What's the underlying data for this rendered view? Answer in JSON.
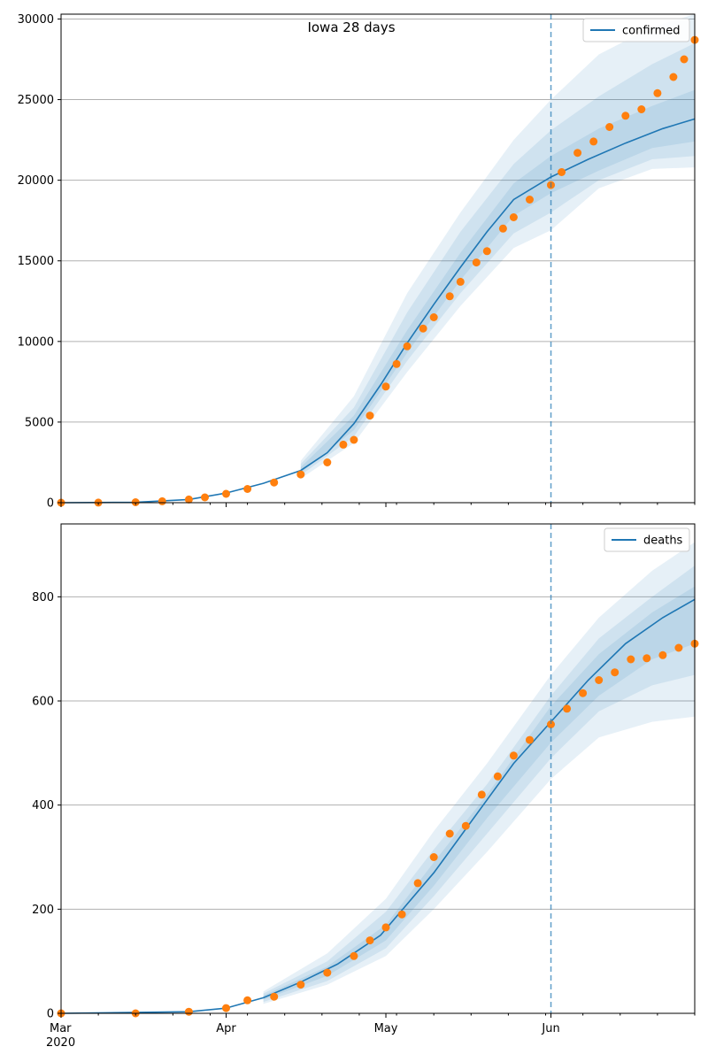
{
  "figure": {
    "title": "Iowa 28 days"
  },
  "colors": {
    "fit_line": "#1f77b4",
    "band": "#1f77b4",
    "observed": "#ff7f0e",
    "grid": "#b0b0b0",
    "cutoff": "#1f77b4"
  },
  "chart_data": [
    {
      "type": "line",
      "name": "confirmed-panel",
      "title": "Iowa 28 days",
      "legend": {
        "entries": [
          "confirmed"
        ],
        "placement": "top-right"
      },
      "xlabel": "",
      "ylabel": "",
      "x_range": [
        "2020-03-01",
        "2020-06-28"
      ],
      "x_tick_labels": [
        "Mar",
        "Apr",
        "May",
        "Jun"
      ],
      "x_tick_dates": [
        "2020-03-01",
        "2020-04-01",
        "2020-05-01",
        "2020-06-01"
      ],
      "x_year_label": "2020",
      "x_tick_labels_visible": false,
      "ylim": [
        0,
        30300
      ],
      "y_ticks": [
        0,
        5000,
        10000,
        15000,
        20000,
        25000,
        30000
      ],
      "grid": "horizontal",
      "cutoff_date": "2020-06-01",
      "fit_series": {
        "name": "confirmed",
        "x": [
          "2020-03-01",
          "2020-03-15",
          "2020-03-25",
          "2020-04-01",
          "2020-04-08",
          "2020-04-15",
          "2020-04-20",
          "2020-04-25",
          "2020-04-30",
          "2020-05-05",
          "2020-05-10",
          "2020-05-15",
          "2020-05-20",
          "2020-05-25",
          "2020-06-01",
          "2020-06-08",
          "2020-06-15",
          "2020-06-22",
          "2020-06-28"
        ],
        "y": [
          0,
          20,
          200,
          600,
          1200,
          2000,
          3100,
          4900,
          7300,
          9900,
          12300,
          14600,
          16800,
          18800,
          20200,
          21300,
          22300,
          23200,
          23800
        ]
      },
      "bands": [
        {
          "x": [
            "2020-04-15",
            "2020-04-25",
            "2020-05-05",
            "2020-05-15",
            "2020-05-25",
            "2020-06-01",
            "2020-06-10",
            "2020-06-20",
            "2020-06-28"
          ],
          "low": [
            1500,
            3700,
            8100,
            12200,
            15800,
            16900,
            19500,
            20700,
            20800
          ],
          "high": [
            2600,
            6600,
            13000,
            18000,
            22500,
            25000,
            27800,
            29500,
            30300
          ]
        },
        {
          "x": [
            "2020-04-15",
            "2020-04-25",
            "2020-05-05",
            "2020-05-15",
            "2020-05-25",
            "2020-06-01",
            "2020-06-10",
            "2020-06-20",
            "2020-06-28"
          ],
          "low": [
            1700,
            4100,
            8800,
            13000,
            16700,
            18000,
            20000,
            21300,
            21500
          ],
          "high": [
            2400,
            5900,
            11800,
            16800,
            21000,
            23100,
            25200,
            27200,
            28500
          ]
        },
        {
          "x": [
            "2020-04-15",
            "2020-04-25",
            "2020-05-05",
            "2020-05-15",
            "2020-05-25",
            "2020-06-01",
            "2020-06-10",
            "2020-06-20",
            "2020-06-28"
          ],
          "low": [
            1850,
            4500,
            9300,
            13800,
            17800,
            19200,
            20600,
            22000,
            22400
          ],
          "high": [
            2200,
            5400,
            10700,
            15500,
            19800,
            21500,
            23200,
            24600,
            25600
          ]
        }
      ],
      "observed_series": {
        "name": "observed",
        "x": [
          "2020-03-01",
          "2020-03-08",
          "2020-03-15",
          "2020-03-20",
          "2020-03-25",
          "2020-03-28",
          "2020-04-01",
          "2020-04-05",
          "2020-04-10",
          "2020-04-15",
          "2020-04-20",
          "2020-04-23",
          "2020-04-25",
          "2020-04-28",
          "2020-05-01",
          "2020-05-03",
          "2020-05-05",
          "2020-05-08",
          "2020-05-10",
          "2020-05-13",
          "2020-05-15",
          "2020-05-18",
          "2020-05-20",
          "2020-05-23",
          "2020-05-25",
          "2020-05-28",
          "2020-06-01",
          "2020-06-03",
          "2020-06-06",
          "2020-06-09",
          "2020-06-12",
          "2020-06-15",
          "2020-06-18",
          "2020-06-21",
          "2020-06-24",
          "2020-06-26",
          "2020-06-28"
        ],
        "y": [
          0,
          5,
          25,
          90,
          200,
          330,
          550,
          850,
          1250,
          1750,
          2500,
          3600,
          3900,
          5400,
          7200,
          8600,
          9700,
          10800,
          11500,
          12800,
          13700,
          14900,
          15600,
          17000,
          17700,
          18800,
          19700,
          20500,
          21700,
          22400,
          23300,
          24000,
          24400,
          25400,
          26400,
          27500,
          28700
        ]
      }
    },
    {
      "type": "line",
      "name": "deaths-panel",
      "title": "",
      "legend": {
        "entries": [
          "deaths"
        ],
        "placement": "top-right"
      },
      "xlabel": "",
      "ylabel": "",
      "x_range": [
        "2020-03-01",
        "2020-06-28"
      ],
      "x_tick_labels": [
        "Mar",
        "Apr",
        "May",
        "Jun"
      ],
      "x_tick_dates": [
        "2020-03-01",
        "2020-04-01",
        "2020-05-01",
        "2020-06-01"
      ],
      "x_year_label": "2020",
      "x_tick_labels_visible": true,
      "ylim": [
        0,
        940
      ],
      "y_ticks": [
        0,
        200,
        400,
        600,
        800
      ],
      "grid": "horizontal",
      "cutoff_date": "2020-06-01",
      "fit_series": {
        "name": "deaths",
        "x": [
          "2020-03-01",
          "2020-03-25",
          "2020-04-01",
          "2020-04-08",
          "2020-04-15",
          "2020-04-22",
          "2020-04-30",
          "2020-05-05",
          "2020-05-10",
          "2020-05-15",
          "2020-05-20",
          "2020-05-25",
          "2020-06-01",
          "2020-06-08",
          "2020-06-15",
          "2020-06-22",
          "2020-06-28"
        ],
        "y": [
          0,
          3,
          10,
          30,
          60,
          95,
          150,
          210,
          270,
          340,
          410,
          480,
          560,
          640,
          710,
          760,
          795
        ]
      },
      "bands": [
        {
          "x": [
            "2020-04-08",
            "2020-04-20",
            "2020-05-01",
            "2020-05-10",
            "2020-05-20",
            "2020-06-01",
            "2020-06-10",
            "2020-06-20",
            "2020-06-28"
          ],
          "low": [
            18,
            55,
            110,
            200,
            310,
            450,
            530,
            560,
            570
          ],
          "high": [
            42,
            115,
            220,
            350,
            480,
            650,
            760,
            850,
            905
          ]
        },
        {
          "x": [
            "2020-04-08",
            "2020-04-20",
            "2020-05-01",
            "2020-05-10",
            "2020-05-20",
            "2020-06-01",
            "2020-06-10",
            "2020-06-20",
            "2020-06-28"
          ],
          "low": [
            22,
            62,
            125,
            225,
            345,
            490,
            580,
            630,
            650
          ],
          "high": [
            38,
            100,
            195,
            315,
            440,
            610,
            720,
            800,
            860
          ]
        },
        {
          "x": [
            "2020-04-08",
            "2020-04-20",
            "2020-05-01",
            "2020-05-10",
            "2020-05-20",
            "2020-06-01",
            "2020-06-10",
            "2020-06-20",
            "2020-06-28"
          ],
          "low": [
            26,
            72,
            140,
            245,
            375,
            520,
            610,
            680,
            710
          ],
          "high": [
            34,
            90,
            170,
            290,
            420,
            590,
            690,
            770,
            820
          ]
        }
      ],
      "observed_series": {
        "name": "observed",
        "x": [
          "2020-03-01",
          "2020-03-15",
          "2020-03-25",
          "2020-04-01",
          "2020-04-05",
          "2020-04-10",
          "2020-04-15",
          "2020-04-20",
          "2020-04-25",
          "2020-04-28",
          "2020-05-01",
          "2020-05-04",
          "2020-05-07",
          "2020-05-10",
          "2020-05-13",
          "2020-05-16",
          "2020-05-19",
          "2020-05-22",
          "2020-05-25",
          "2020-05-28",
          "2020-06-01",
          "2020-06-04",
          "2020-06-07",
          "2020-06-10",
          "2020-06-13",
          "2020-06-16",
          "2020-06-19",
          "2020-06-22",
          "2020-06-25",
          "2020-06-28"
        ],
        "y": [
          0,
          0,
          3,
          10,
          25,
          32,
          55,
          78,
          110,
          140,
          165,
          190,
          250,
          300,
          345,
          360,
          420,
          455,
          495,
          525,
          555,
          585,
          615,
          640,
          655,
          680,
          682,
          688,
          702,
          710
        ]
      }
    }
  ]
}
